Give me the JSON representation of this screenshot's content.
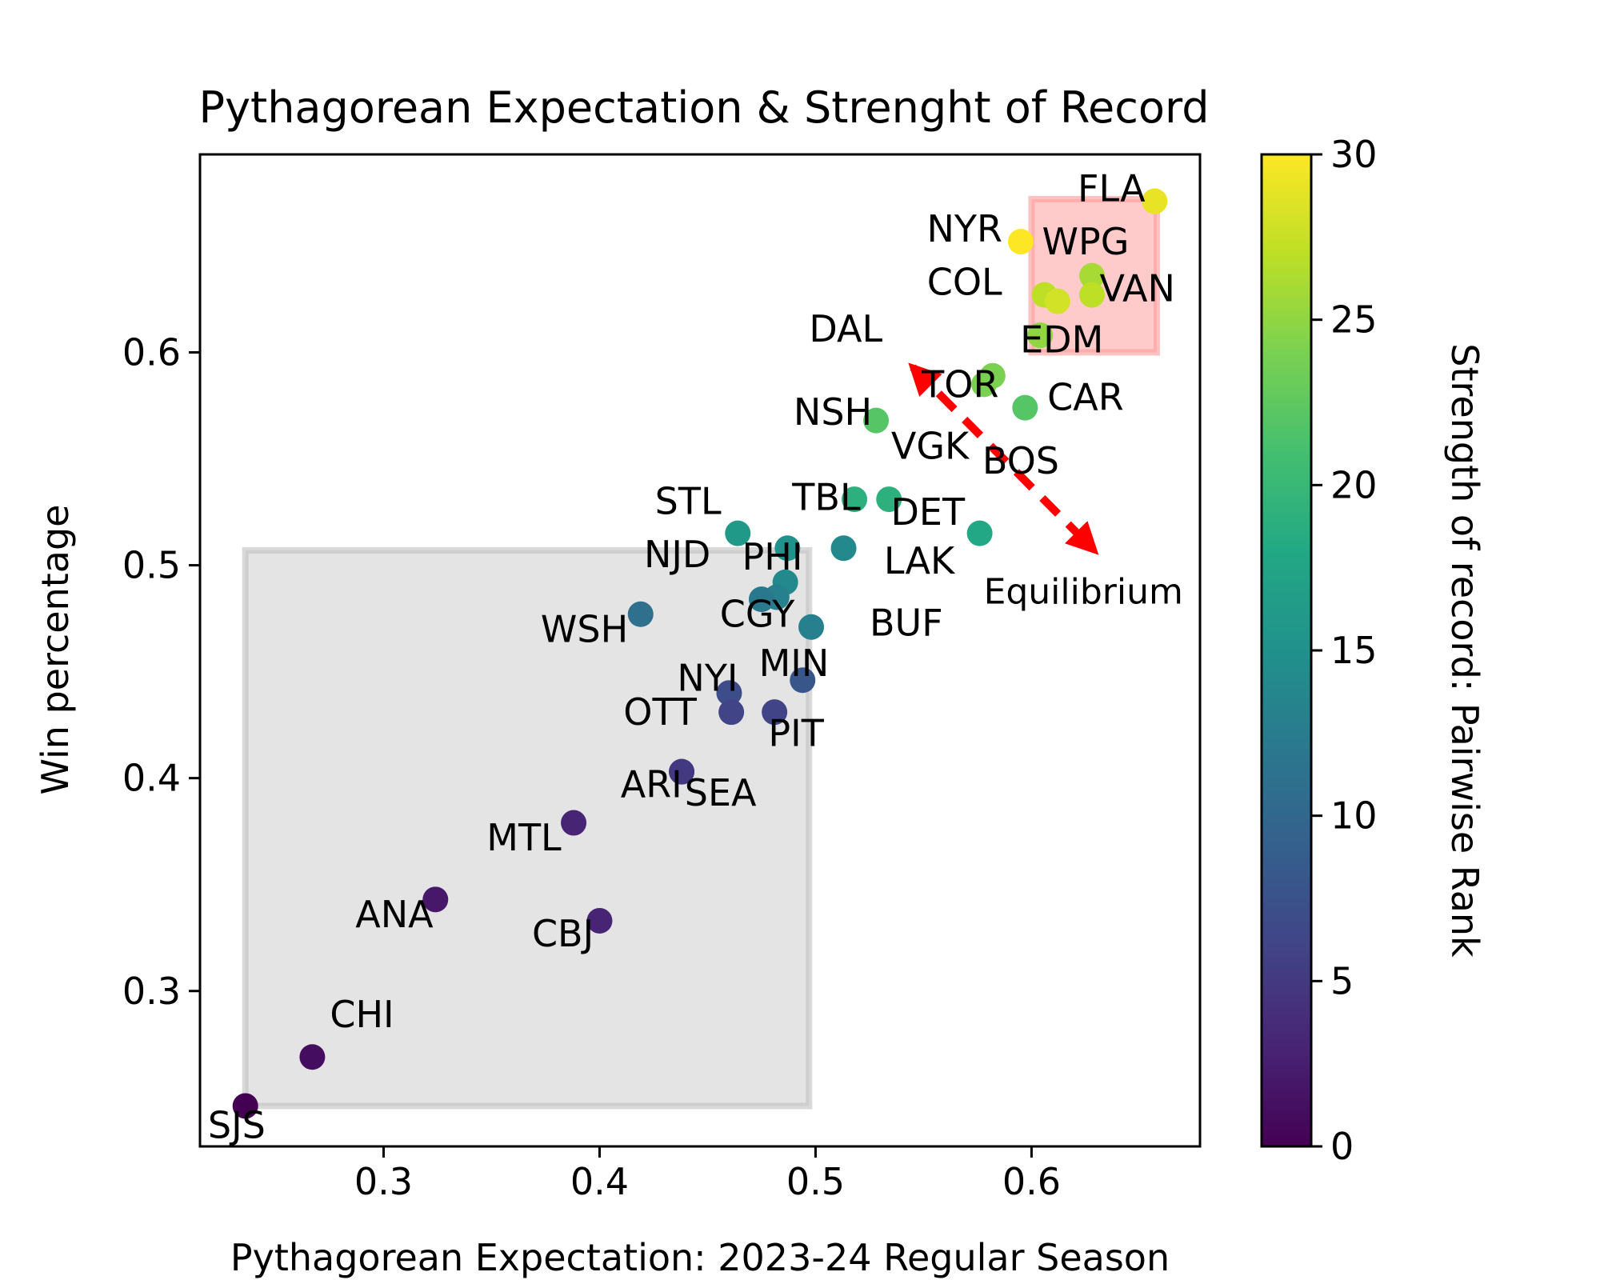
{
  "chart_data": {
    "type": "scatter",
    "title": "Pythagorean Expectation & Strenght of Record",
    "xlabel": "Pythagorean Expectation: 2023-24 Regular Season",
    "ylabel": "Win percentage",
    "xlim": [
      0.215,
      0.678
    ],
    "ylim": [
      0.227,
      0.693
    ],
    "xticks": [
      0.3,
      0.4,
      0.5,
      0.6
    ],
    "xtick_labels": [
      "0.3",
      "0.4",
      "0.5",
      "0.6"
    ],
    "yticks": [
      0.3,
      0.4,
      0.5,
      0.6
    ],
    "ytick_labels": [
      "0.3",
      "0.4",
      "0.5",
      "0.6"
    ],
    "grid": false,
    "colorbar": {
      "label": "Strength of record: Pairwise Rank",
      "range": [
        0,
        30
      ],
      "ticks": [
        0,
        5,
        10,
        15,
        20,
        25,
        30
      ],
      "tick_labels": [
        "0",
        "5",
        "10",
        "15",
        "20",
        "25",
        "30"
      ],
      "colormap": "viridis"
    },
    "points": [
      {
        "team": "FLA",
        "x": 0.657,
        "y": 0.671,
        "rank": 29
      },
      {
        "team": "NYR",
        "x": 0.595,
        "y": 0.652,
        "rank": 30
      },
      {
        "team": "WPG",
        "x": 0.628,
        "y": 0.636,
        "rank": 26
      },
      {
        "team": "COL",
        "x": 0.606,
        "y": 0.627,
        "rank": 27
      },
      {
        "team": "VAN",
        "x": 0.628,
        "y": 0.627,
        "rank": 27
      },
      {
        "team": "EDM",
        "x": 0.604,
        "y": 0.608,
        "rank": 25
      },
      {
        "team": "DAL",
        "x": 0.612,
        "y": 0.624,
        "rank": 28
      },
      {
        "team": "TOR",
        "x": 0.578,
        "y": 0.585,
        "rank": 24
      },
      {
        "team": "CAR",
        "x": 0.597,
        "y": 0.574,
        "rank": 22
      },
      {
        "team": "BOS",
        "x": 0.582,
        "y": 0.589,
        "rank": 24
      },
      {
        "team": "NSH",
        "x": 0.528,
        "y": 0.568,
        "rank": 22
      },
      {
        "team": "VGK",
        "x": 0.534,
        "y": 0.531,
        "rank": 19
      },
      {
        "team": "TBL",
        "x": 0.518,
        "y": 0.531,
        "rank": 19
      },
      {
        "team": "DET",
        "x": 0.513,
        "y": 0.508,
        "rank": 14
      },
      {
        "team": "LAK",
        "x": 0.576,
        "y": 0.515,
        "rank": 18
      },
      {
        "team": "STL",
        "x": 0.464,
        "y": 0.515,
        "rank": 16
      },
      {
        "team": "PHI",
        "x": 0.487,
        "y": 0.508,
        "rank": 15
      },
      {
        "team": "NJD",
        "x": 0.486,
        "y": 0.492,
        "rank": 14
      },
      {
        "team": "CGY",
        "x": 0.482,
        "y": 0.485,
        "rank": 13
      },
      {
        "team": "WSH",
        "x": 0.419,
        "y": 0.477,
        "rank": 11
      },
      {
        "team": "BUF",
        "x": 0.498,
        "y": 0.471,
        "rank": 13
      },
      {
        "team": "CGY2",
        "x": 0.475,
        "y": 0.484,
        "rank": 12
      },
      {
        "team": "NYI",
        "x": 0.46,
        "y": 0.44,
        "rank": 7
      },
      {
        "team": "MIN",
        "x": 0.494,
        "y": 0.446,
        "rank": 8
      },
      {
        "team": "OTT",
        "x": 0.461,
        "y": 0.431,
        "rank": 6
      },
      {
        "team": "PIT",
        "x": 0.481,
        "y": 0.431,
        "rank": 6
      },
      {
        "team": "SEA",
        "x": 0.438,
        "y": 0.403,
        "rank": 5
      },
      {
        "team": "ARI",
        "x": 0.438,
        "y": 0.403,
        "rank": 5
      },
      {
        "team": "MTL",
        "x": 0.388,
        "y": 0.379,
        "rank": 3
      },
      {
        "team": "ANA",
        "x": 0.324,
        "y": 0.343,
        "rank": 2
      },
      {
        "team": "CBJ",
        "x": 0.4,
        "y": 0.333,
        "rank": 3
      },
      {
        "team": "CHI",
        "x": 0.267,
        "y": 0.269,
        "rank": 1
      },
      {
        "team": "SJS",
        "x": 0.236,
        "y": 0.246,
        "rank": 0
      }
    ],
    "labels": [
      {
        "text": "FLA",
        "x": 0.637,
        "y": 0.671
      },
      {
        "text": "NYR",
        "x": 0.569,
        "y": 0.652
      },
      {
        "text": "WPG",
        "x": 0.625,
        "y": 0.646
      },
      {
        "text": "COL",
        "x": 0.569,
        "y": 0.627
      },
      {
        "text": "VAN",
        "x": 0.649,
        "y": 0.624
      },
      {
        "text": "EDM",
        "x": 0.614,
        "y": 0.6
      },
      {
        "text": "DAL",
        "x": 0.514,
        "y": 0.605
      },
      {
        "text": "TOR",
        "x": 0.567,
        "y": 0.579
      },
      {
        "text": "CAR",
        "x": 0.625,
        "y": 0.573
      },
      {
        "text": "NSH",
        "x": 0.508,
        "y": 0.566
      },
      {
        "text": "VGK",
        "x": 0.553,
        "y": 0.55
      },
      {
        "text": "BOS",
        "x": 0.595,
        "y": 0.543
      },
      {
        "text": "STL",
        "x": 0.441,
        "y": 0.524
      },
      {
        "text": "TBL",
        "x": 0.505,
        "y": 0.526
      },
      {
        "text": "DET",
        "x": 0.552,
        "y": 0.519
      },
      {
        "text": "NJD",
        "x": 0.436,
        "y": 0.499
      },
      {
        "text": "PHI",
        "x": 0.48,
        "y": 0.498
      },
      {
        "text": "LAK",
        "x": 0.548,
        "y": 0.496
      },
      {
        "text": "CGY",
        "x": 0.473,
        "y": 0.471
      },
      {
        "text": "BUF",
        "x": 0.542,
        "y": 0.467
      },
      {
        "text": "WSH",
        "x": 0.393,
        "y": 0.464
      },
      {
        "text": "NYI",
        "x": 0.45,
        "y": 0.441
      },
      {
        "text": "MIN",
        "x": 0.49,
        "y": 0.448
      },
      {
        "text": "OTT",
        "x": 0.428,
        "y": 0.425
      },
      {
        "text": "PIT",
        "x": 0.491,
        "y": 0.415
      },
      {
        "text": "ARI",
        "x": 0.424,
        "y": 0.391
      },
      {
        "text": "SEA",
        "x": 0.456,
        "y": 0.387
      },
      {
        "text": "MTL",
        "x": 0.365,
        "y": 0.366
      },
      {
        "text": "ANA",
        "x": 0.305,
        "y": 0.33
      },
      {
        "text": "CBJ",
        "x": 0.383,
        "y": 0.321
      },
      {
        "text": "CHI",
        "x": 0.29,
        "y": 0.283
      },
      {
        "text": "SJS",
        "x": 0.232,
        "y": 0.231
      }
    ],
    "annotation": {
      "text": "Equilibrium",
      "color": "#ff0000",
      "arrow_from": [
        0.545,
        0.593
      ],
      "arrow_to": [
        0.629,
        0.507
      ],
      "text_pos": [
        0.624,
        0.482
      ]
    },
    "regions": [
      {
        "name": "top-region",
        "x0": 0.6,
        "x1": 0.658,
        "y0": 0.6,
        "y1": 0.672,
        "fill": "#ffb3b3",
        "stroke": "#ff9999"
      },
      {
        "name": "bottom-region",
        "x0": 0.236,
        "x1": 0.497,
        "y0": 0.246,
        "y1": 0.507,
        "fill": "#d9d9d9",
        "stroke": "#bfbfbf"
      }
    ]
  }
}
